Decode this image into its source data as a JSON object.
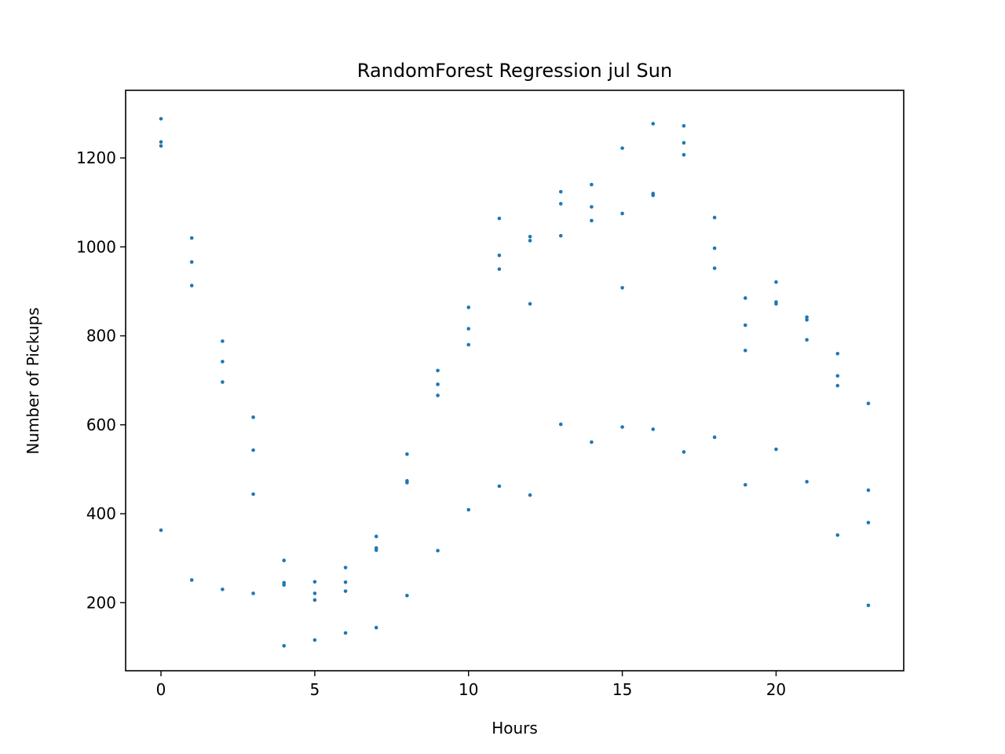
{
  "chart_data": {
    "type": "scatter",
    "title": "RandomForest Regression jul Sun",
    "xlabel": "Hours",
    "ylabel": "Number of Pickups",
    "xlim": [
      -1.15,
      24.15
    ],
    "ylim": [
      47,
      1352
    ],
    "x_ticks": [
      0,
      5,
      10,
      15,
      20
    ],
    "y_ticks": [
      200,
      400,
      600,
      800,
      1000,
      1200
    ],
    "grid": false,
    "legend": "none",
    "color": "#1f77b4",
    "points": [
      [
        0,
        1288
      ],
      [
        0,
        1236
      ],
      [
        0,
        1227
      ],
      [
        0,
        363
      ],
      [
        1,
        1020
      ],
      [
        1,
        966
      ],
      [
        1,
        913
      ],
      [
        1,
        251
      ],
      [
        2,
        788
      ],
      [
        2,
        742
      ],
      [
        2,
        696
      ],
      [
        2,
        230
      ],
      [
        3,
        617
      ],
      [
        3,
        543
      ],
      [
        3,
        444
      ],
      [
        3,
        221
      ],
      [
        4,
        295
      ],
      [
        4,
        245
      ],
      [
        4,
        240
      ],
      [
        4,
        103
      ],
      [
        5,
        247
      ],
      [
        5,
        221
      ],
      [
        5,
        206
      ],
      [
        5,
        116
      ],
      [
        6,
        279
      ],
      [
        6,
        246
      ],
      [
        6,
        226
      ],
      [
        6,
        132
      ],
      [
        7,
        349
      ],
      [
        7,
        323
      ],
      [
        7,
        318
      ],
      [
        7,
        144
      ],
      [
        8,
        534
      ],
      [
        8,
        474
      ],
      [
        8,
        470
      ],
      [
        8,
        216
      ],
      [
        9,
        722
      ],
      [
        9,
        691
      ],
      [
        9,
        666
      ],
      [
        9,
        317
      ],
      [
        10,
        864
      ],
      [
        10,
        816
      ],
      [
        10,
        780
      ],
      [
        10,
        409
      ],
      [
        11,
        1064
      ],
      [
        11,
        981
      ],
      [
        11,
        950
      ],
      [
        11,
        462
      ],
      [
        12,
        1023
      ],
      [
        12,
        1014
      ],
      [
        12,
        872
      ],
      [
        12,
        442
      ],
      [
        13,
        1124
      ],
      [
        13,
        1097
      ],
      [
        13,
        1025
      ],
      [
        13,
        601
      ],
      [
        14,
        1140
      ],
      [
        14,
        1090
      ],
      [
        14,
        1059
      ],
      [
        14,
        561
      ],
      [
        15,
        1222
      ],
      [
        15,
        1075
      ],
      [
        15,
        908
      ],
      [
        15,
        595
      ],
      [
        16,
        1277
      ],
      [
        16,
        1120
      ],
      [
        16,
        1116
      ],
      [
        16,
        590
      ],
      [
        17,
        1272
      ],
      [
        17,
        1234
      ],
      [
        17,
        1207
      ],
      [
        17,
        539
      ],
      [
        18,
        1066
      ],
      [
        18,
        997
      ],
      [
        18,
        952
      ],
      [
        18,
        572
      ],
      [
        19,
        885
      ],
      [
        19,
        824
      ],
      [
        19,
        767
      ],
      [
        19,
        465
      ],
      [
        20,
        921
      ],
      [
        20,
        876
      ],
      [
        20,
        872
      ],
      [
        20,
        545
      ],
      [
        21,
        842
      ],
      [
        21,
        836
      ],
      [
        21,
        791
      ],
      [
        21,
        472
      ],
      [
        22,
        760
      ],
      [
        22,
        710
      ],
      [
        22,
        688
      ],
      [
        22,
        352
      ],
      [
        23,
        648
      ],
      [
        23,
        453
      ],
      [
        23,
        380
      ],
      [
        23,
        194
      ]
    ]
  }
}
